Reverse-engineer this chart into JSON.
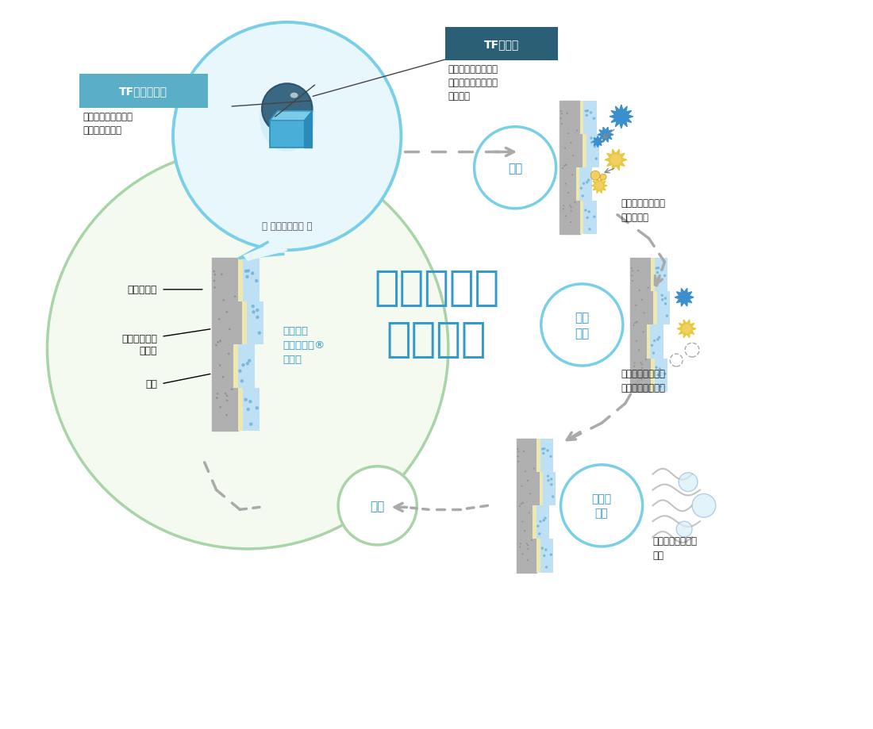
{
  "title": "空気を洗う\nはたらき",
  "title_color": "#3399CC",
  "bg_color": "#FFFFFF",
  "label_tf_nitrogen": "TF窒素化合物",
  "label_tf_nitrogen_color": "#FFFFFF",
  "label_tf_nitrogen_bg": "#5AAEC8",
  "label_tf_nitrogen_desc": "アルデヒド系物質を\n速効吸着・分解",
  "label_tf_metal": "TF金属塩",
  "label_tf_metal_color": "#FFFFFF",
  "label_tf_metal_bg": "#2B5F75",
  "label_tf_metal_desc": "悪臭原因物質を触媒\n作用で水や二酸化炭\n素に分解",
  "label_zoom": "［ 拡大イメージ ］",
  "label_triple_fresh": "トリプル\nフレッシュ®\n消臭剤",
  "label_triple_fresh_color": "#3399CC",
  "label_backing": "裏打ち紙層",
  "label_vinyl": "塩化ビニール\n樹脂層",
  "label_print": "印刷",
  "label_adsorption": "吸着",
  "label_adsorption_color": "#3399CC",
  "label_catalyst": "触媒\n作用",
  "label_catalyst_color": "#3399CC",
  "label_decompose": "分解・\n放出",
  "label_decompose_color": "#3399CC",
  "label_regenerate": "再生",
  "label_regenerate_color": "#3399BB",
  "desc_adsorption": "ニオイの元になる\n物質を吸着",
  "desc_catalyst": "ニオイの元を水と\n二酸化炭素に分解",
  "desc_decompose": "水と二酸化炭素を\n放出",
  "light_blue": "#ADE4F0",
  "medium_blue": "#5AAEC8",
  "dark_blue": "#2B5F75",
  "green_circle": "#A8D4A8",
  "cream": "#FFFFF0",
  "dot_color": "#AAAAAA",
  "wallpaper_gray": "#AAAAAA",
  "wallpaper_cream": "#F0ECC8",
  "wallpaper_dotblue": "#A0C8E0"
}
